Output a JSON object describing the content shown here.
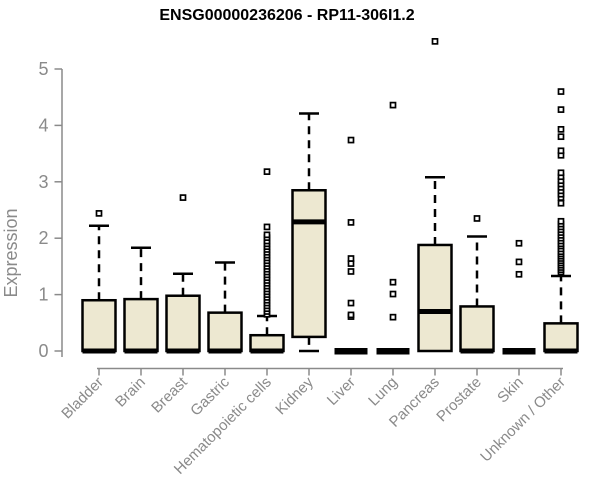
{
  "colors": {
    "box_fill": "#EDE8D1",
    "box_border": "#000000",
    "axis": "#8a8a8a",
    "title": "#000000",
    "outlier_fill": "#ffffff"
  },
  "chart_data": {
    "type": "boxplot",
    "title": "ENSG00000236206 - RP11-306I1.2",
    "xlabel": "",
    "ylabel": "Expression",
    "ylim": [
      0,
      5.6
    ],
    "yticks": [
      0,
      1,
      2,
      3,
      4,
      5
    ],
    "grid": false,
    "legend": false,
    "categories": [
      "Bladder",
      "Brain",
      "Breast",
      "Gastric",
      "Hematopoietic cells",
      "Kidney",
      "Liver",
      "Lung",
      "Pancreas",
      "Prostate",
      "Skin",
      "Unknown / Other"
    ],
    "series": [
      {
        "label": "Bladder",
        "q1": 0,
        "median": 0,
        "q3": 0.9,
        "whisker_low": 0,
        "whisker_high": 2.22,
        "outliers": [
          2.44
        ]
      },
      {
        "label": "Brain",
        "q1": 0,
        "median": 0,
        "q3": 0.92,
        "whisker_low": 0,
        "whisker_high": 1.83,
        "outliers": []
      },
      {
        "label": "Breast",
        "q1": 0,
        "median": 0,
        "q3": 0.98,
        "whisker_low": 0,
        "whisker_high": 1.37,
        "outliers": [
          2.72
        ]
      },
      {
        "label": "Gastric",
        "q1": 0,
        "median": 0,
        "q3": 0.68,
        "whisker_low": 0,
        "whisker_high": 1.57,
        "outliers": []
      },
      {
        "label": "Hematopoietic cells",
        "q1": 0,
        "median": 0,
        "q3": 0.28,
        "whisker_low": 0,
        "whisker_high": 0.62,
        "outliers": [
          0.65,
          0.7,
          0.75,
          0.8,
          0.85,
          0.9,
          0.95,
          1.0,
          1.05,
          1.1,
          1.15,
          1.2,
          1.25,
          1.3,
          1.35,
          1.4,
          1.45,
          1.5,
          1.55,
          1.6,
          1.65,
          1.7,
          1.75,
          1.8,
          1.85,
          1.9,
          1.95,
          2.01,
          2.06,
          2.2,
          3.18
        ]
      },
      {
        "label": "Kidney",
        "q1": 0.25,
        "median": 2.29,
        "q3": 2.85,
        "whisker_low": 0,
        "whisker_high": 4.21,
        "outliers": []
      },
      {
        "label": "Liver",
        "q1": 0,
        "median": 0,
        "q3": 0,
        "whisker_low": 0,
        "whisker_high": 0,
        "outliers": [
          0.61,
          0.64,
          0.85,
          1.41,
          1.55,
          1.64,
          2.28,
          3.74
        ]
      },
      {
        "label": "Lung",
        "q1": 0,
        "median": 0,
        "q3": 0,
        "whisker_low": 0,
        "whisker_high": 0,
        "outliers": [
          0.6,
          1.01,
          1.22,
          4.36
        ]
      },
      {
        "label": "Pancreas",
        "q1": 0,
        "median": 0.7,
        "q3": 1.88,
        "whisker_low": 0,
        "whisker_high": 3.08,
        "outliers": [
          5.49
        ]
      },
      {
        "label": "Prostate",
        "q1": 0,
        "median": 0,
        "q3": 0.79,
        "whisker_low": 0,
        "whisker_high": 2.03,
        "outliers": [
          2.35
        ]
      },
      {
        "label": "Skin",
        "q1": 0,
        "median": 0,
        "q3": 0,
        "whisker_low": 0,
        "whisker_high": 0,
        "outliers": [
          1.36,
          1.58,
          1.91
        ]
      },
      {
        "label": "Unknown / Other",
        "q1": 0,
        "median": 0,
        "q3": 0.49,
        "whisker_low": 0,
        "whisker_high": 1.33,
        "outliers": [
          1.4,
          1.44,
          1.48,
          1.52,
          1.56,
          1.6,
          1.64,
          1.68,
          1.72,
          1.76,
          1.81,
          1.86,
          1.9,
          1.95,
          2.0,
          2.05,
          2.1,
          2.15,
          2.2,
          2.25,
          2.3,
          2.62,
          2.72,
          2.78,
          2.84,
          2.9,
          2.96,
          3.02,
          3.09,
          3.16,
          3.47,
          3.55,
          3.8,
          3.93,
          4.28,
          4.6
        ]
      }
    ]
  }
}
